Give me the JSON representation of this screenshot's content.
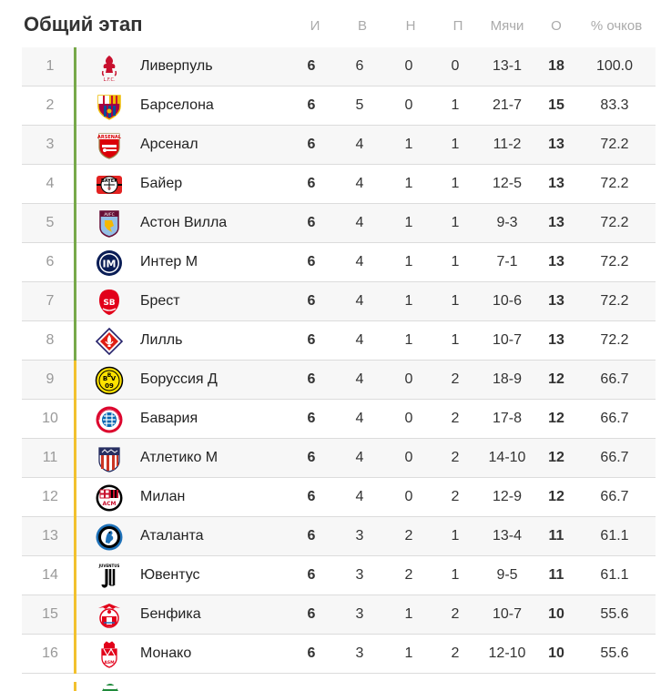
{
  "title": "Общий этап",
  "columns": {
    "played": "И",
    "won": "В",
    "drawn": "Н",
    "lost": "П",
    "goals": "Мячи",
    "points": "О",
    "pct": "% очков"
  },
  "colors": {
    "direct": "#77a94a",
    "playoff": "#f2c12e"
  },
  "rows": [
    {
      "pos": "1",
      "team": "Ливерпуль",
      "icon": "liverpool-crest-icon",
      "p": "6",
      "w": "6",
      "d": "0",
      "l": "0",
      "goals": "13-1",
      "pts": "18",
      "pct": "100.0",
      "zone": "direct"
    },
    {
      "pos": "2",
      "team": "Барселона",
      "icon": "barcelona-crest-icon",
      "p": "6",
      "w": "5",
      "d": "0",
      "l": "1",
      "goals": "21-7",
      "pts": "15",
      "pct": "83.3",
      "zone": "direct"
    },
    {
      "pos": "3",
      "team": "Арсенал",
      "icon": "arsenal-crest-icon",
      "p": "6",
      "w": "4",
      "d": "1",
      "l": "1",
      "goals": "11-2",
      "pts": "13",
      "pct": "72.2",
      "zone": "direct"
    },
    {
      "pos": "4",
      "team": "Байер",
      "icon": "leverkusen-crest-icon",
      "p": "6",
      "w": "4",
      "d": "1",
      "l": "1",
      "goals": "12-5",
      "pts": "13",
      "pct": "72.2",
      "zone": "direct"
    },
    {
      "pos": "5",
      "team": "Астон Вилла",
      "icon": "aston-villa-crest-icon",
      "p": "6",
      "w": "4",
      "d": "1",
      "l": "1",
      "goals": "9-3",
      "pts": "13",
      "pct": "72.2",
      "zone": "direct"
    },
    {
      "pos": "6",
      "team": "Интер М",
      "icon": "inter-crest-icon",
      "p": "6",
      "w": "4",
      "d": "1",
      "l": "1",
      "goals": "7-1",
      "pts": "13",
      "pct": "72.2",
      "zone": "direct"
    },
    {
      "pos": "7",
      "team": "Брест",
      "icon": "brest-crest-icon",
      "p": "6",
      "w": "4",
      "d": "1",
      "l": "1",
      "goals": "10-6",
      "pts": "13",
      "pct": "72.2",
      "zone": "direct"
    },
    {
      "pos": "8",
      "team": "Лилль",
      "icon": "lille-crest-icon",
      "p": "6",
      "w": "4",
      "d": "1",
      "l": "1",
      "goals": "10-7",
      "pts": "13",
      "pct": "72.2",
      "zone": "direct"
    },
    {
      "pos": "9",
      "team": "Боруссия Д",
      "icon": "dortmund-crest-icon",
      "p": "6",
      "w": "4",
      "d": "0",
      "l": "2",
      "goals": "18-9",
      "pts": "12",
      "pct": "66.7",
      "zone": "playoff"
    },
    {
      "pos": "10",
      "team": "Бавария",
      "icon": "bayern-crest-icon",
      "p": "6",
      "w": "4",
      "d": "0",
      "l": "2",
      "goals": "17-8",
      "pts": "12",
      "pct": "66.7",
      "zone": "playoff"
    },
    {
      "pos": "11",
      "team": "Атлетико М",
      "icon": "atletico-crest-icon",
      "p": "6",
      "w": "4",
      "d": "0",
      "l": "2",
      "goals": "14-10",
      "pts": "12",
      "pct": "66.7",
      "zone": "playoff"
    },
    {
      "pos": "12",
      "team": "Милан",
      "icon": "milan-crest-icon",
      "p": "6",
      "w": "4",
      "d": "0",
      "l": "2",
      "goals": "12-9",
      "pts": "12",
      "pct": "66.7",
      "zone": "playoff"
    },
    {
      "pos": "13",
      "team": "Аталанта",
      "icon": "atalanta-crest-icon",
      "p": "6",
      "w": "3",
      "d": "2",
      "l": "1",
      "goals": "13-4",
      "pts": "11",
      "pct": "61.1",
      "zone": "playoff"
    },
    {
      "pos": "14",
      "team": "Ювентус",
      "icon": "juventus-crest-icon",
      "p": "6",
      "w": "3",
      "d": "2",
      "l": "1",
      "goals": "9-5",
      "pts": "11",
      "pct": "61.1",
      "zone": "playoff"
    },
    {
      "pos": "15",
      "team": "Бенфика",
      "icon": "benfica-crest-icon",
      "p": "6",
      "w": "3",
      "d": "1",
      "l": "2",
      "goals": "10-7",
      "pts": "10",
      "pct": "55.6",
      "zone": "playoff"
    },
    {
      "pos": "16",
      "team": "Монако",
      "icon": "monaco-crest-icon",
      "p": "6",
      "w": "3",
      "d": "1",
      "l": "2",
      "goals": "12-10",
      "pts": "10",
      "pct": "55.6",
      "zone": "playoff"
    }
  ]
}
